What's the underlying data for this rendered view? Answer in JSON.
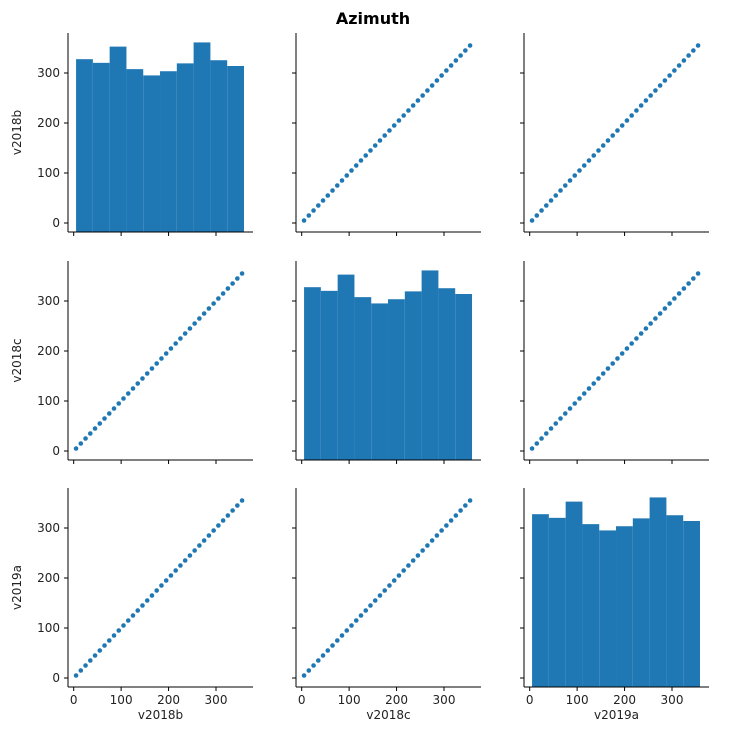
{
  "title": "Azimuth",
  "variables": [
    "v2018b",
    "v2018c",
    "v2019a"
  ],
  "colors": {
    "bar": "#1f77b4",
    "point": "#1f77b4",
    "axis": "#000000"
  },
  "chart_data": {
    "type": "scatter-matrix",
    "title": "Azimuth",
    "xlim": [
      -12,
      378
    ],
    "ylim": [
      -18,
      380
    ],
    "ticks": [
      0,
      100,
      200,
      300
    ],
    "histogram": {
      "bin_edges": [
        5,
        40.4,
        75.8,
        111.2,
        146.6,
        182,
        217.4,
        252.8,
        288.2,
        323.6,
        359
      ],
      "counts": [
        330,
        323,
        354,
        311,
        299,
        307,
        322,
        362,
        328,
        317
      ]
    },
    "scatter": {
      "x": [
        5,
        15,
        25,
        35,
        45,
        55,
        65,
        75,
        85,
        95,
        105,
        115,
        125,
        135,
        145,
        155,
        165,
        175,
        185,
        195,
        205,
        215,
        225,
        235,
        245,
        255,
        265,
        275,
        285,
        295,
        305,
        315,
        325,
        335,
        345,
        355
      ],
      "y": [
        5,
        15,
        25,
        35,
        45,
        55,
        65,
        75,
        85,
        95,
        105,
        115,
        125,
        135,
        145,
        155,
        165,
        175,
        185,
        195,
        205,
        215,
        225,
        235,
        245,
        255,
        265,
        275,
        285,
        295,
        305,
        315,
        325,
        335,
        345,
        355
      ]
    }
  }
}
